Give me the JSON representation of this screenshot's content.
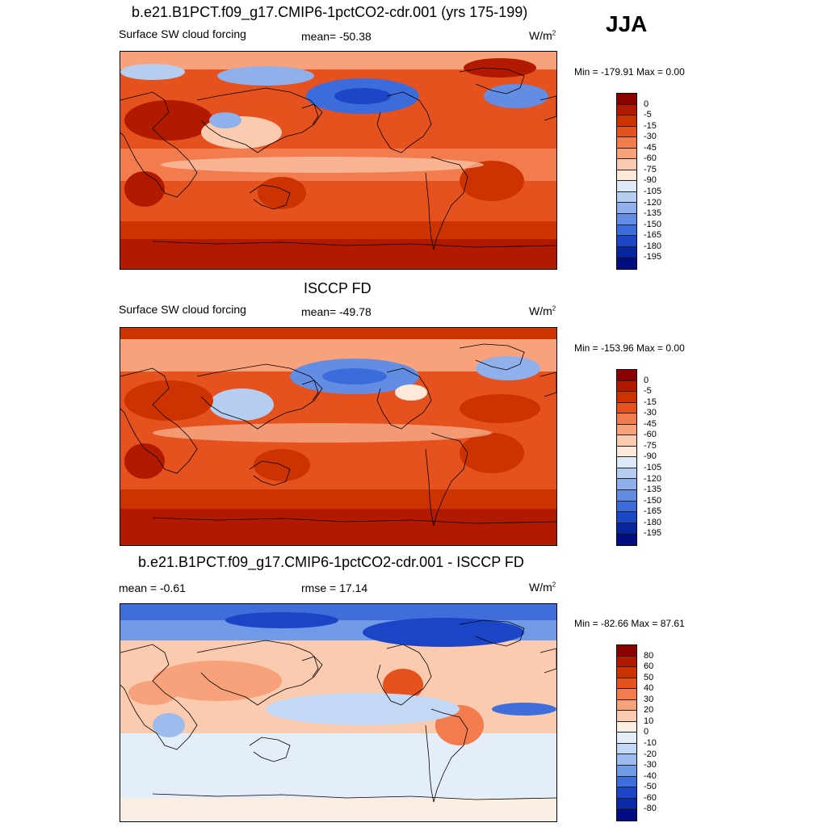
{
  "season": "JJA",
  "panels": [
    {
      "title": "b.e21.B1PCT.f09_g17.CMIP6-1pctCO2-cdr.001 (yrs 175-199)",
      "variable": "Surface SW cloud forcing",
      "stat": "mean= -50.38",
      "units_base": "W/m",
      "units_exp": "2",
      "minmax": "Min = -179.91 Max =    0.00",
      "colorbar_labels": [
        "0",
        "-5",
        "-15",
        "-30",
        "-45",
        "-60",
        "-75",
        "-90",
        "-105",
        "-120",
        "-135",
        "-150",
        "-165",
        "-180",
        "-195"
      ],
      "colorbar_colors": [
        "#8b0000",
        "#b21a00",
        "#cc3300",
        "#e5521d",
        "#f27c4e",
        "#f8a27c",
        "#fbcbb0",
        "#fde8da",
        "#dce9f7",
        "#b5cdf0",
        "#8fb0ea",
        "#638de2",
        "#3c6cdb",
        "#1c45c7",
        "#07259f",
        "#000c80"
      ],
      "map_style": "model"
    },
    {
      "title": "ISCCP FD",
      "variable": "Surface SW cloud forcing",
      "stat": "mean= -49.78",
      "units_base": "W/m",
      "units_exp": "2",
      "minmax": "Min = -153.96 Max =    0.00",
      "colorbar_labels": [
        "0",
        "-5",
        "-15",
        "-30",
        "-45",
        "-60",
        "-75",
        "-90",
        "-105",
        "-120",
        "-135",
        "-150",
        "-165",
        "-180",
        "-195"
      ],
      "colorbar_colors": [
        "#8b0000",
        "#b21a00",
        "#cc3300",
        "#e5521d",
        "#f27c4e",
        "#f8a27c",
        "#fbcbb0",
        "#fde8da",
        "#dce9f7",
        "#b5cdf0",
        "#8fb0ea",
        "#638de2",
        "#3c6cdb",
        "#1c45c7",
        "#07259f",
        "#000c80"
      ],
      "map_style": "obs"
    },
    {
      "title": "b.e21.B1PCT.f09_g17.CMIP6-1pctCO2-cdr.001 - ISCCP FD",
      "stat_left": "mean =  -0.61",
      "stat": "rmse =  17.14",
      "units_base": "W/m",
      "units_exp": "2",
      "minmax": "Min = -82.66 Max =  87.61",
      "colorbar_labels": [
        "80",
        "60",
        "50",
        "40",
        "30",
        "20",
        "10",
        "0",
        "-10",
        "-20",
        "-30",
        "-40",
        "-50",
        "-60",
        "-80"
      ],
      "colorbar_colors": [
        "#8b0000",
        "#b21a00",
        "#cc3300",
        "#e5521d",
        "#f27c4e",
        "#f8a27c",
        "#fbcbb0",
        "#fdeee4",
        "#e4eefa",
        "#c3d8f4",
        "#9dbcee",
        "#709ae6",
        "#3f6edb",
        "#1b45c6",
        "#0a2aa6",
        "#000c80"
      ],
      "map_style": "diff"
    }
  ]
}
